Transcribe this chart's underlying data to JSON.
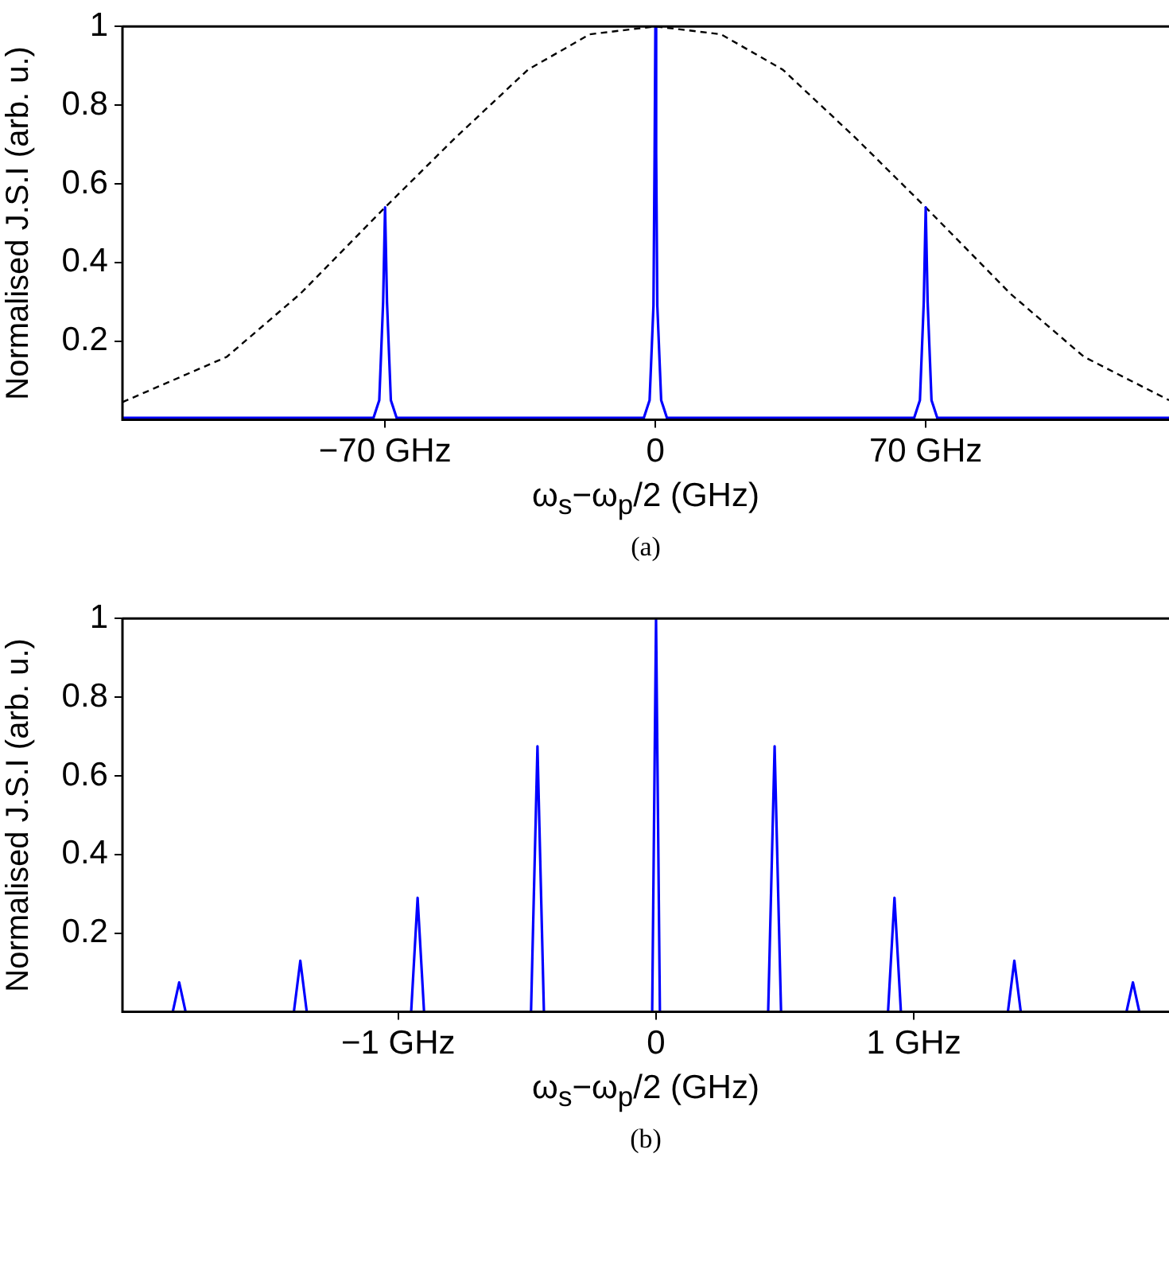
{
  "chart_data": [
    {
      "type": "line",
      "xlabel": "ω$_{s}$−ω$_{p}$/2 (GHz)",
      "ylabel": "Normalised J.S.I (arb. u.)",
      "annotations": [
        "(a)"
      ],
      "xlim": [
        -138,
        133
      ],
      "ylim": [
        0,
        1
      ],
      "xticks": [
        {
          "value": -70,
          "label": "−70 GHz"
        },
        0,
        {
          "value": 70,
          "label": "70 GHz"
        }
      ],
      "yticks": [
        {
          "value": 0.2,
          "label": "0.2"
        },
        {
          "value": 0.4,
          "label": "0.4"
        },
        {
          "value": 0.6,
          "label": "0.6"
        },
        {
          "value": 0.8,
          "label": "0.8"
        },
        1
      ],
      "grid": false,
      "legend": false,
      "marker": "none",
      "series": [
        {
          "type": "line",
          "color": "#0000ff",
          "line_style": "solid",
          "x": [
            -138,
            -73,
            -71.5,
            -70.5,
            -70,
            -69.5,
            -68.5,
            -67,
            -3,
            -1.5,
            -0.5,
            -0.2,
            0,
            0.2,
            0.5,
            1.5,
            3,
            67,
            68.5,
            69.5,
            70,
            70.5,
            71.5,
            73,
            133
          ],
          "values": [
            0.005,
            0.005,
            0.05,
            0.3,
            0.54,
            0.3,
            0.05,
            0.005,
            0.005,
            0.05,
            0.29,
            0.68,
            1,
            0.68,
            0.29,
            0.05,
            0.005,
            0.005,
            0.05,
            0.3,
            0.54,
            0.3,
            0.05,
            0.005,
            0.005
          ]
        },
        {
          "type": "line",
          "color": "#000000",
          "line_style": "dashed",
          "x": [
            -138,
            -111,
            -92,
            -70,
            -52,
            -33,
            -17,
            0,
            17,
            33,
            52,
            70,
            92,
            111,
            133
          ],
          "values": [
            0.045,
            0.16,
            0.32,
            0.54,
            0.715,
            0.89,
            0.98,
            1,
            0.98,
            0.89,
            0.715,
            0.54,
            0.32,
            0.16,
            0.05
          ]
        }
      ]
    },
    {
      "type": "line",
      "xlabel": "ω$_{s}$−ω$_{p}$/2 (GHz)",
      "ylabel": "Normalised J.S.I (arb. u.)",
      "annotations": [
        "(b)"
      ],
      "xlim": [
        -2.07,
        1.99
      ],
      "ylim": [
        0,
        1
      ],
      "xticks": [
        {
          "value": -1,
          "label": "−1 GHz"
        },
        0,
        {
          "value": 1,
          "label": "1 GHz"
        }
      ],
      "yticks": [
        {
          "value": 0.2,
          "label": "0.2"
        },
        {
          "value": 0.4,
          "label": "0.4"
        },
        {
          "value": 0.6,
          "label": "0.6"
        },
        {
          "value": 0.8,
          "label": "0.8"
        },
        1
      ],
      "grid": false,
      "legend": false,
      "marker": "none",
      "series": [
        {
          "type": "line",
          "color": "#0000ff",
          "line_style": "solid",
          "x": [
            -2.07,
            -1.875,
            -1.85,
            -1.825,
            -1.405,
            -1.38,
            -1.355,
            -0.95,
            -0.925,
            -0.9,
            -0.485,
            -0.46,
            -0.435,
            -0.015,
            0,
            0.015,
            0.435,
            0.46,
            0.485,
            0.9,
            0.925,
            0.95,
            1.365,
            1.39,
            1.415,
            1.825,
            1.85,
            1.875,
            1.99
          ],
          "values": [
            0,
            0,
            0.075,
            0,
            0,
            0.13,
            0,
            0,
            0.29,
            0,
            0,
            0.675,
            0,
            0,
            1,
            0,
            0,
            0.675,
            0,
            0,
            0.29,
            0,
            0,
            0.13,
            0,
            0,
            0.075,
            0,
            0
          ]
        }
      ]
    }
  ]
}
